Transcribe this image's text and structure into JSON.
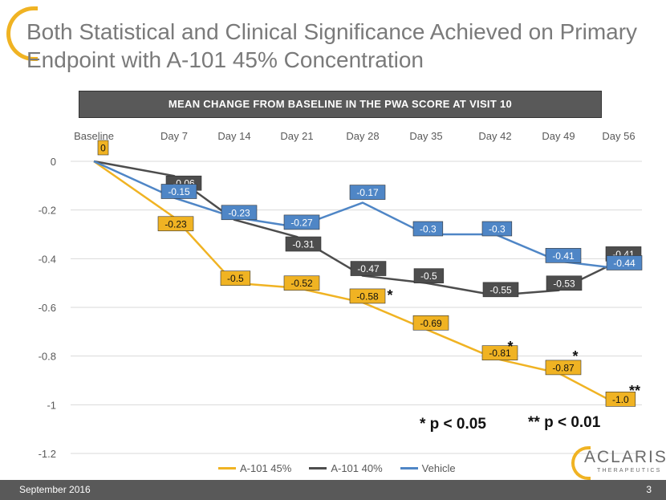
{
  "title": "Both Statistical and Clinical Significance Achieved on Primary Endpoint with A-101 45% Concentration",
  "banner": "MEAN CHANGE FROM BASELINE IN THE PWA SCORE AT VISIT 10",
  "chart_data": {
    "type": "line",
    "title": "MEAN CHANGE FROM BASELINE IN THE PWA SCORE AT VISIT 10",
    "categories": [
      "Baseline",
      "Day 7",
      "Day 14",
      "Day 21",
      "Day 28",
      "Day 35",
      "Day 42",
      "Day 49",
      "Day 56"
    ],
    "ylim": [
      -1.2,
      0
    ],
    "yticks": [
      0,
      -0.2,
      -0.4,
      -0.6,
      -0.8,
      -1,
      -1.2
    ],
    "series": [
      {
        "name": "A-101 45%",
        "color": "#f0b323",
        "values": [
          0,
          -0.23,
          -0.5,
          -0.52,
          -0.58,
          -0.69,
          -0.81,
          -0.87,
          -1.0
        ],
        "labels": [
          "0",
          "-0.23",
          "-0.5",
          "-0.52",
          "-0.58",
          "-0.69",
          "-0.81",
          "-0.87",
          "-1.0"
        ]
      },
      {
        "name": "A-101 40%",
        "color": "#4d4d4d",
        "values": [
          0,
          -0.06,
          -0.24,
          -0.31,
          -0.47,
          -0.5,
          -0.55,
          -0.53,
          -0.41
        ],
        "labels": [
          "",
          "-0.06",
          "",
          "-0.31",
          "-0.47",
          "-0.5",
          "-0.55",
          "-0.53",
          "-0.41"
        ]
      },
      {
        "name": "Vehicle",
        "color": "#4f86c6",
        "values": [
          0,
          -0.15,
          -0.23,
          -0.27,
          -0.17,
          -0.3,
          -0.3,
          -0.41,
          -0.44
        ],
        "labels": [
          "",
          "-0.15",
          "-0.23",
          "-0.27",
          "-0.17",
          "-0.3",
          "-0.3",
          "-0.41",
          "-0.44"
        ]
      }
    ],
    "significance_markers": [
      {
        "category": "Day 28",
        "text": "*"
      },
      {
        "category": "Day 42",
        "text": "*"
      },
      {
        "category": "Day 49",
        "text": "*"
      },
      {
        "category": "Day 56",
        "text": "**"
      }
    ]
  },
  "significance_notes": {
    "p05": "* p < 0.05",
    "p01": "** p < 0.01"
  },
  "brand": {
    "name": "ACLARIS",
    "sub": "THERAPEUTICS"
  },
  "footer": {
    "date": "September 2016",
    "page": "3"
  }
}
